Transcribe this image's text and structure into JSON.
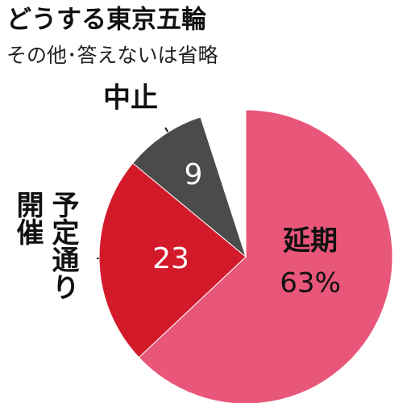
{
  "chart_data": {
    "type": "pie",
    "title": "どうする東京五輪",
    "subtitle": "その他･答えないは省略",
    "categories": [
      "延期",
      "予定通り開催",
      "中止"
    ],
    "values": [
      63,
      23,
      9
    ],
    "value_labels": [
      "63%",
      "23",
      "9"
    ],
    "colors": [
      "#e8567a",
      "#d31a2b",
      "#4b4b4b"
    ]
  }
}
